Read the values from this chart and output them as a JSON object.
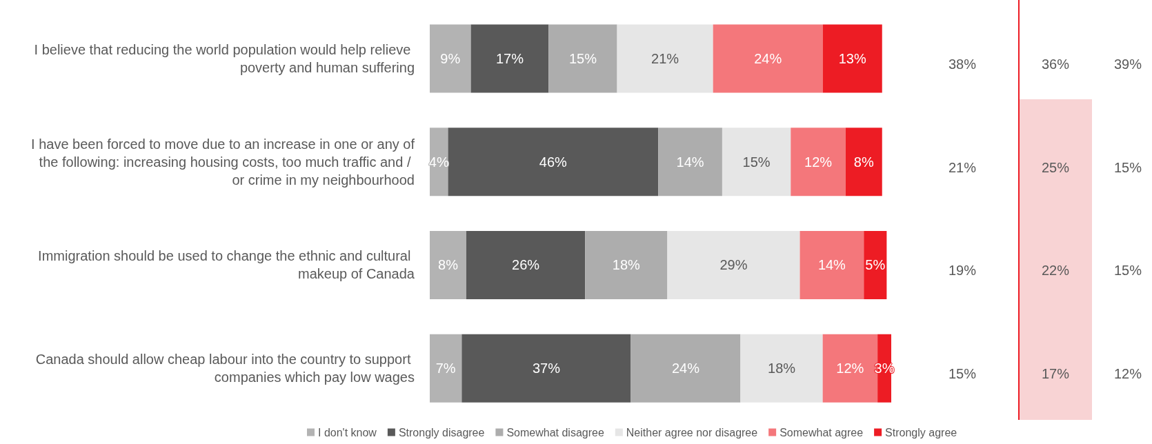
{
  "chart_data": {
    "type": "bar",
    "orientation": "horizontal",
    "stacked": true,
    "legend": "bottom",
    "categories": [
      "I believe that reducing the world population would help relieve poverty and human suffering",
      "I have been forced to move due to an increase in one or any of the following: increasing housing costs, too much traffic and / or crime in my neighbourhood",
      "Immigration should be used to change the ethnic and cultural makeup of Canada",
      "Canada should allow cheap labour into the country to support companies which pay low wages"
    ],
    "series": [
      {
        "name": "I don't know",
        "color": "#b3b3b3",
        "values": [
          9,
          4,
          8,
          7
        ],
        "value_labels": [
          "9%",
          "4%",
          "8%",
          "7%"
        ]
      },
      {
        "name": "Strongly disagree",
        "color": "#595959",
        "values": [
          17,
          46,
          26,
          37
        ],
        "value_labels": [
          "17%",
          "46%",
          "26%",
          "37%"
        ]
      },
      {
        "name": "Somewhat disagree",
        "color": "#adadad",
        "values": [
          15,
          14,
          18,
          24
        ],
        "value_labels": [
          "15%",
          "14%",
          "18%",
          "24%"
        ]
      },
      {
        "name": "Neither agree nor disagree",
        "color": "#e6e6e6",
        "values": [
          21,
          15,
          29,
          18
        ],
        "value_labels": [
          "21%",
          "15%",
          "29%",
          "18%"
        ]
      },
      {
        "name": "Somewhat agree",
        "color": "#f4777b",
        "values": [
          24,
          12,
          14,
          12
        ],
        "value_labels": [
          "24%",
          "12%",
          "14%",
          "12%"
        ]
      },
      {
        "name": "Strongly agree",
        "color": "#ed1c24",
        "values": [
          13,
          8,
          5,
          3
        ],
        "value_labels": [
          "13%",
          "8%",
          "5%",
          "3%"
        ]
      }
    ],
    "annotations": [
      "38%",
      "36%",
      "39%",
      "21%",
      "25%",
      "15%",
      "19%",
      "22%",
      "15%",
      "15%",
      "17%",
      "12%"
    ]
  }
}
